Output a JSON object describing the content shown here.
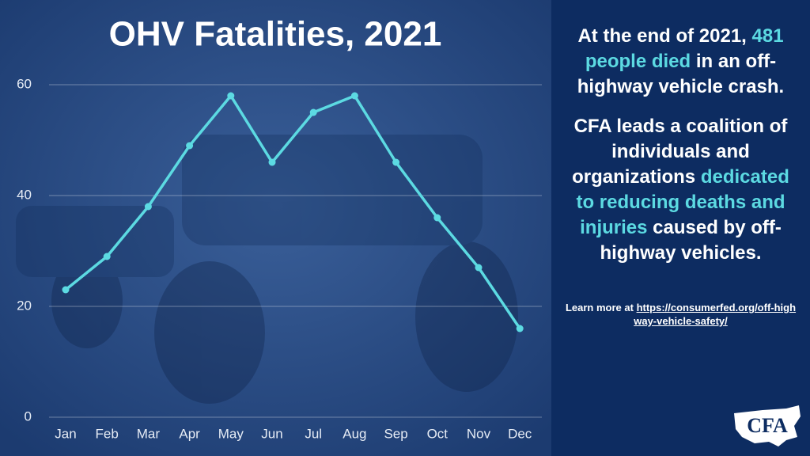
{
  "chart_data": {
    "type": "line",
    "title": "OHV Fatalities, 2021",
    "categories": [
      "Jan",
      "Feb",
      "Mar",
      "Apr",
      "May",
      "Jun",
      "Jul",
      "Aug",
      "Sep",
      "Oct",
      "Nov",
      "Dec"
    ],
    "values": [
      23,
      29,
      38,
      49,
      58,
      46,
      55,
      58,
      46,
      36,
      27,
      16
    ],
    "color": "#5cdae2",
    "ylim": [
      0,
      60
    ],
    "yticks": [
      0,
      20,
      40,
      60
    ],
    "grid": true
  },
  "sidebar": {
    "paragraphs": [
      [
        {
          "text": "At the end of 2021,",
          "highlight": false
        },
        {
          "text": "481 people died",
          "highlight": true
        },
        {
          "text": "in an off-highway vehicle crash.",
          "highlight": false
        }
      ],
      [
        {
          "text": "CFA leads a coalition of individuals and organizations",
          "highlight": false
        },
        {
          "text": "dedicated to reducing deaths and injuries",
          "highlight": true
        },
        {
          "text": "caused by off-highway vehicles.",
          "highlight": false
        }
      ]
    ],
    "highlight_color": "#5cdae2",
    "learn_more": "Learn more at",
    "link": "https://consumerfed.org/off-highway-vehicle-safety/",
    "logo": "CFA"
  }
}
